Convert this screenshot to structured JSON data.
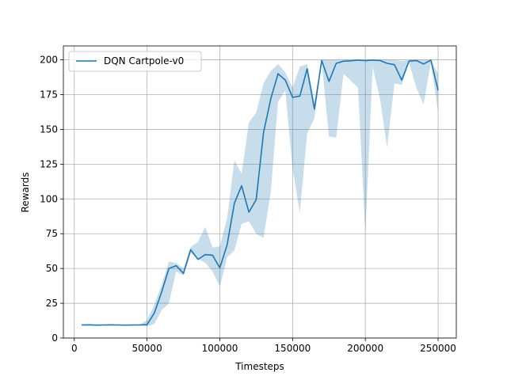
{
  "chart_data": {
    "type": "line",
    "title": "",
    "xlabel": "Timesteps",
    "ylabel": "Rewards",
    "xlim": [
      -7500,
      262500
    ],
    "ylim": [
      0,
      210
    ],
    "xticks": [
      0,
      50000,
      100000,
      150000,
      200000,
      250000
    ],
    "yticks": [
      0,
      25,
      50,
      75,
      100,
      125,
      150,
      175,
      200
    ],
    "grid": true,
    "legend_position": "top-left",
    "series": [
      {
        "name": "DQN Cartpole-v0",
        "color": "#1f77b4",
        "band_color": "#1f77b4",
        "x": [
          5000,
          10000,
          15000,
          20000,
          25000,
          30000,
          35000,
          40000,
          45000,
          50000,
          55000,
          60000,
          65000,
          70000,
          75000,
          80000,
          85000,
          90000,
          95000,
          100000,
          105000,
          110000,
          115000,
          120000,
          125000,
          130000,
          135000,
          140000,
          145000,
          150000,
          155000,
          160000,
          165000,
          170000,
          175000,
          180000,
          185000,
          190000,
          195000,
          200000,
          205000,
          210000,
          215000,
          220000,
          225000,
          230000,
          235000,
          240000,
          245000,
          250000
        ],
        "mean": [
          9.4,
          9.5,
          9.3,
          9.4,
          9.5,
          9.4,
          9.3,
          9.4,
          9.4,
          9.6,
          18,
          33,
          50,
          52,
          46.5,
          63.5,
          56.5,
          60,
          59.5,
          50.5,
          67,
          97,
          109.5,
          90.5,
          99.5,
          147.5,
          172,
          190,
          185.5,
          173,
          174,
          193.5,
          164.5,
          199.5,
          184.5,
          197.5,
          199,
          199.3,
          199.8,
          199.4,
          199.8,
          199.5,
          197.5,
          196.5,
          185.5,
          199,
          199.5,
          197,
          199.8,
          178
        ],
        "upper": [
          9.6,
          9.7,
          9.5,
          9.6,
          9.7,
          9.6,
          9.5,
          9.6,
          9.8,
          13,
          24,
          38,
          55,
          54,
          50,
          65.5,
          69,
          80,
          65,
          66,
          86,
          128,
          118,
          155,
          162,
          183,
          192,
          197,
          191,
          180,
          195,
          197,
          170,
          200,
          200,
          200,
          200,
          200,
          200,
          200,
          200,
          200,
          200,
          200,
          199,
          200,
          200,
          200,
          200,
          190
        ],
        "lower": [
          9.2,
          9.3,
          9.1,
          9.2,
          9.3,
          9.2,
          9.1,
          9.2,
          9.0,
          8.5,
          10,
          20,
          25,
          48,
          45,
          61,
          57,
          54,
          48,
          37,
          58,
          63,
          82,
          84,
          75,
          72,
          105,
          170,
          178,
          122,
          90,
          147,
          158,
          198,
          145,
          144,
          190,
          185,
          180,
          75,
          195,
          172,
          137,
          183,
          182,
          198,
          180,
          168,
          198,
          163
        ]
      }
    ]
  }
}
